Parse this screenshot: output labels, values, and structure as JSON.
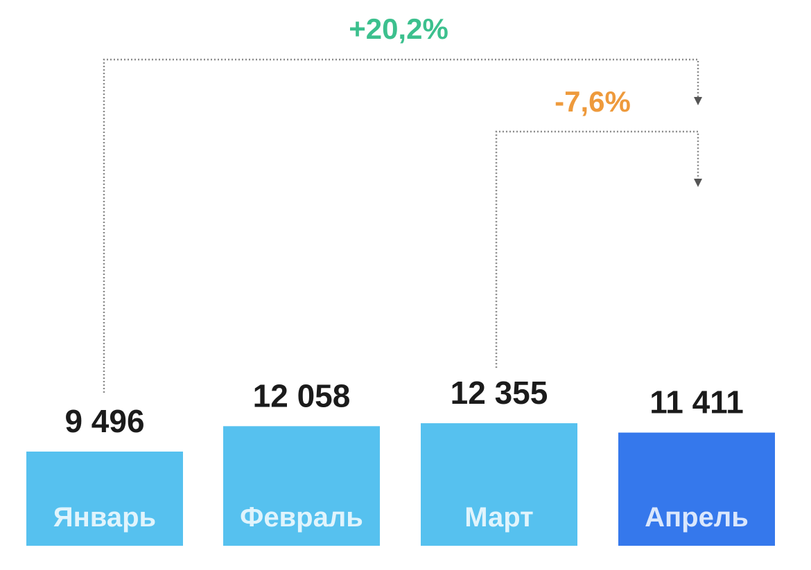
{
  "chart_data": {
    "type": "bar",
    "categories": [
      "Январь",
      "Февраль",
      "Март",
      "Апрель"
    ],
    "values": [
      9496,
      12058,
      12355,
      11411
    ],
    "value_labels": [
      "9 496",
      "12 058",
      "12 355",
      "11 411"
    ],
    "colors": [
      "#56c1ef",
      "#56c1ef",
      "#56c1ef",
      "#3578ec"
    ],
    "ylim": [
      0,
      14000
    ],
    "grid": false,
    "annotations": [
      {
        "text": "+20,2%",
        "from": "Январь",
        "to": "Апрель",
        "color": "#3cc08e"
      },
      {
        "text": "-7,6%",
        "from": "Март",
        "to": "Апрель",
        "color": "#ee9a3c"
      }
    ]
  }
}
